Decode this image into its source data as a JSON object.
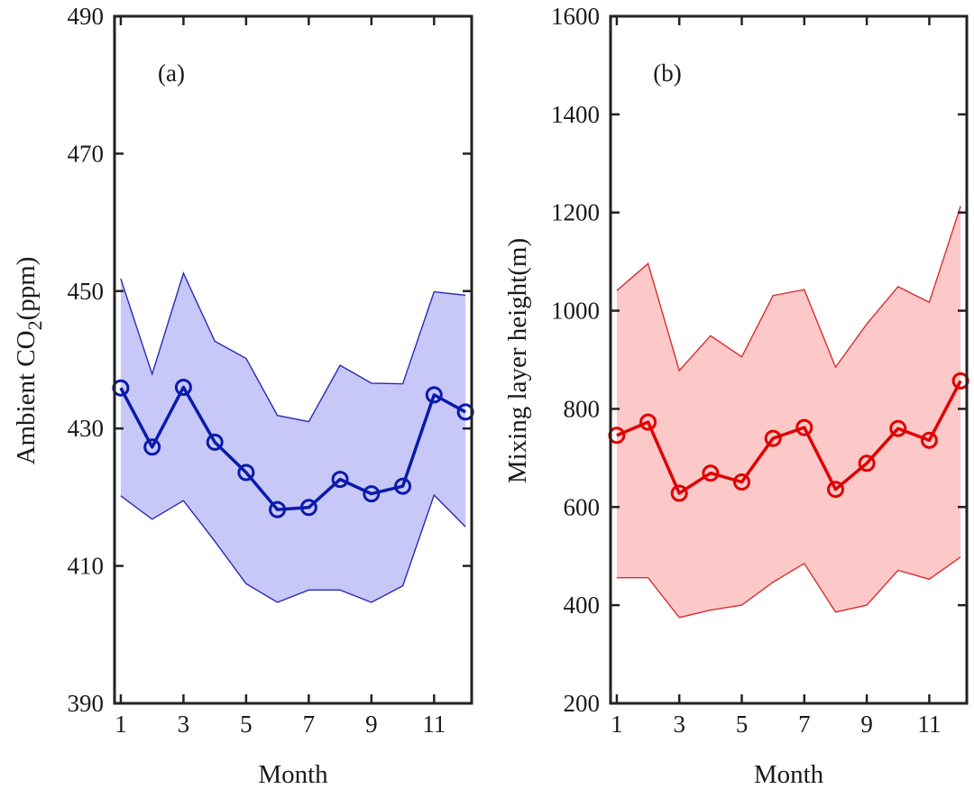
{
  "chart_data": [
    {
      "type": "line",
      "panel_label": "(a)",
      "xlabel": "Month",
      "ylabel_main": "Ambient CO",
      "ylabel_sub": "2",
      "ylabel_unit": "(ppm)",
      "xlim": [
        0.8,
        12.2
      ],
      "ylim": [
        390,
        490
      ],
      "xticks": [
        1,
        3,
        5,
        7,
        9,
        11
      ],
      "yticks": [
        390,
        410,
        430,
        450,
        470,
        490
      ],
      "x": [
        1,
        2,
        3,
        4,
        5,
        6,
        7,
        8,
        9,
        10,
        11,
        12
      ],
      "series": [
        {
          "name": "mean",
          "values": [
            435.9,
            427.3,
            436.0,
            428.0,
            423.6,
            418.2,
            418.5,
            422.6,
            420.5,
            421.6,
            434.9,
            432.4
          ]
        },
        {
          "name": "upper",
          "values": [
            451.8,
            437.9,
            452.6,
            442.7,
            440.2,
            431.9,
            431.0,
            439.2,
            436.6,
            436.5,
            449.9,
            449.4
          ]
        },
        {
          "name": "lower",
          "values": [
            420.2,
            416.8,
            419.5,
            413.6,
            407.4,
            404.7,
            406.5,
            406.5,
            404.7,
            407.1,
            420.3,
            415.7
          ]
        }
      ],
      "colors": {
        "line": "#0a1aaa",
        "band_fill": "#c8c8f8",
        "band_edge": "#2a2ab8"
      }
    },
    {
      "type": "line",
      "panel_label": "(b)",
      "xlabel": "Month",
      "ylabel_main": "Mixing layer height(m)",
      "xlim": [
        0.8,
        12.2
      ],
      "ylim": [
        200,
        1600
      ],
      "xticks": [
        1,
        3,
        5,
        7,
        9,
        11
      ],
      "yticks": [
        200,
        400,
        600,
        800,
        1000,
        1200,
        1400,
        1600
      ],
      "x": [
        1,
        2,
        3,
        4,
        5,
        6,
        7,
        8,
        9,
        10,
        11,
        12
      ],
      "series": [
        {
          "name": "mean",
          "values": [
            746,
            773,
            628,
            669,
            651,
            740,
            762,
            636,
            689,
            760,
            736,
            857
          ]
        },
        {
          "name": "upper",
          "values": [
            1041,
            1096,
            878,
            949,
            906,
            1031,
            1043,
            885,
            973,
            1049,
            1017,
            1213
          ]
        },
        {
          "name": "lower",
          "values": [
            456,
            456,
            375,
            390,
            400,
            447,
            485,
            386,
            400,
            471,
            453,
            498
          ]
        }
      ],
      "colors": {
        "line": "#e00000",
        "band_fill": "#fdc8c8",
        "band_edge": "#d83030"
      }
    }
  ]
}
